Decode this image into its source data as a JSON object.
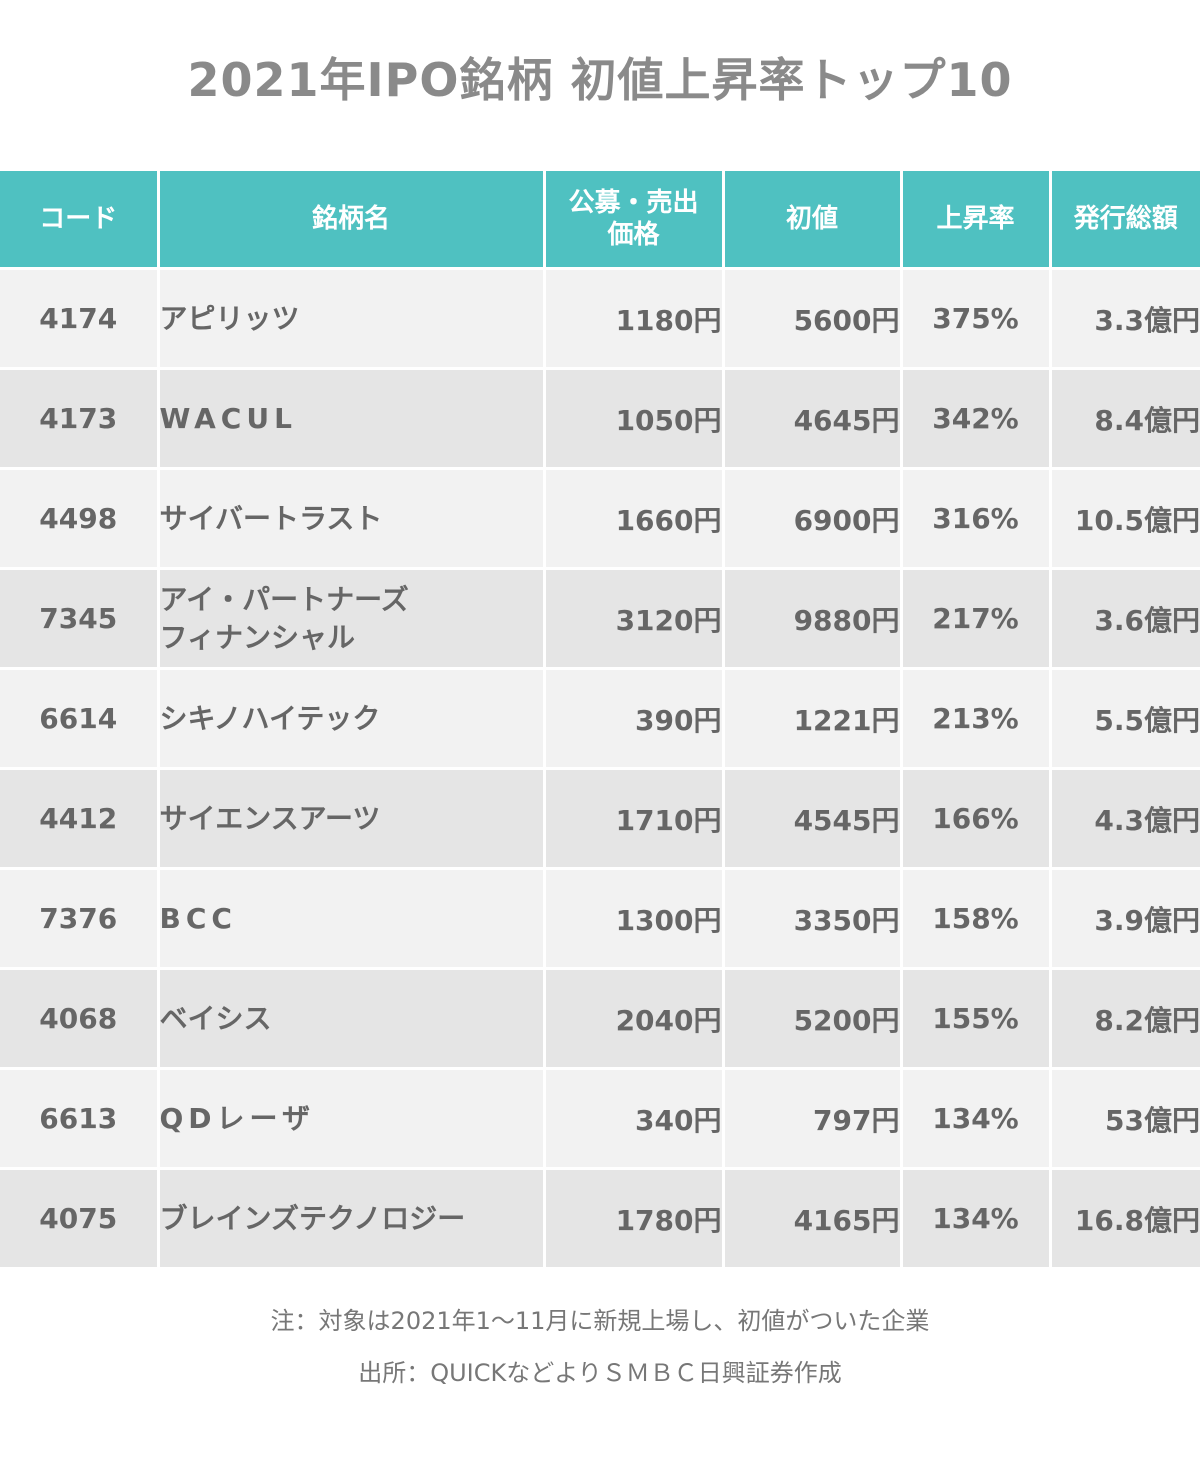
{
  "title": "2021年IPO銘柄 初値上昇率トップ10",
  "headers": {
    "code": "コード",
    "name": "銘柄名",
    "offer_price_line1": "公募・売出",
    "offer_price_line2": "価格",
    "first_price": "初値",
    "rise_rate": "上昇率",
    "total_issue": "発行総額"
  },
  "rows": [
    {
      "code": "4174",
      "name_line1": "アピリッツ",
      "name_line2": "",
      "offer": "1180円",
      "first": "5600円",
      "rate": "375%",
      "total": "3.3億円"
    },
    {
      "code": "4173",
      "name_line1": "WACUL",
      "name_line2": "",
      "offer": "1050円",
      "first": "4645円",
      "rate": "342%",
      "total": "8.4億円"
    },
    {
      "code": "4498",
      "name_line1": "サイバートラスト",
      "name_line2": "",
      "offer": "1660円",
      "first": "6900円",
      "rate": "316%",
      "total": "10.5億円"
    },
    {
      "code": "7345",
      "name_line1": "アイ・パートナーズ",
      "name_line2": "フィナンシャル",
      "offer": "3120円",
      "first": "9880円",
      "rate": "217%",
      "total": "3.6億円"
    },
    {
      "code": "6614",
      "name_line1": "シキノハイテック",
      "name_line2": "",
      "offer": "390円",
      "first": "1221円",
      "rate": "213%",
      "total": "5.5億円"
    },
    {
      "code": "4412",
      "name_line1": "サイエンスアーツ",
      "name_line2": "",
      "offer": "1710円",
      "first": "4545円",
      "rate": "166%",
      "total": "4.3億円"
    },
    {
      "code": "7376",
      "name_line1": "BCC",
      "name_line2": "",
      "offer": "1300円",
      "first": "3350円",
      "rate": "158%",
      "total": "3.9億円"
    },
    {
      "code": "4068",
      "name_line1": "ベイシス",
      "name_line2": "",
      "offer": "2040円",
      "first": "5200円",
      "rate": "155%",
      "total": "8.2億円"
    },
    {
      "code": "6613",
      "name_line1": "QDレーザ",
      "name_line2": "",
      "offer": "340円",
      "first": "797円",
      "rate": "134%",
      "total": "53億円"
    },
    {
      "code": "4075",
      "name_line1": "ブレインズテクノロジー",
      "name_line2": "",
      "offer": "1780円",
      "first": "4165円",
      "rate": "134%",
      "total": "16.8億円"
    }
  ],
  "notes": {
    "note": "注：対象は2021年1〜11月に新規上場し、初値がついた企業",
    "source": "出所：QUICKなどよりＳＭＢＣ日興証券作成"
  },
  "colors": {
    "header_bg": "#4fc1c1",
    "row_odd": "#f2f2f2",
    "row_even": "#e5e5e5",
    "text": "#666666"
  }
}
